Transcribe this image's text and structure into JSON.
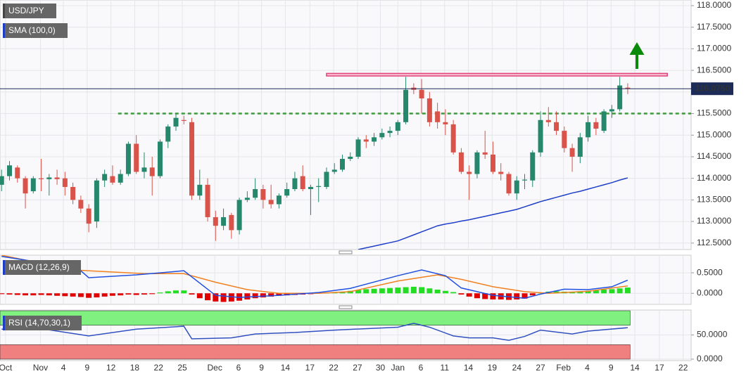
{
  "chart_data": [
    {
      "type": "candlestick",
      "title": "USD/JPY",
      "xlim": [
        -0.2,
        87
      ],
      "ylim": [
        112.35,
        118.13
      ],
      "xticks": [
        {
          "value": 0.5,
          "label": "Oct"
        },
        {
          "value": 4.9,
          "label": "Nov"
        },
        {
          "value": 7.8,
          "label": "4"
        },
        {
          "value": 10.8,
          "label": "9"
        },
        {
          "value": 13.8,
          "label": "12"
        },
        {
          "value": 16.8,
          "label": "18"
        },
        {
          "value": 19.8,
          "label": "22"
        },
        {
          "value": 22.8,
          "label": "25"
        },
        {
          "value": 26.9,
          "label": "Dec"
        },
        {
          "value": 29.9,
          "label": "6"
        },
        {
          "value": 32.8,
          "label": "9"
        },
        {
          "value": 35.8,
          "label": "14"
        },
        {
          "value": 38.9,
          "label": "17"
        },
        {
          "value": 41.9,
          "label": "22"
        },
        {
          "value": 44.9,
          "label": "27"
        },
        {
          "value": 47.8,
          "label": "30"
        },
        {
          "value": 50.0,
          "label": "Jan"
        },
        {
          "value": 52.9,
          "label": "6"
        },
        {
          "value": 55.9,
          "label": "11"
        },
        {
          "value": 58.9,
          "label": "14"
        },
        {
          "value": 61.9,
          "label": "19"
        },
        {
          "value": 65.0,
          "label": "24"
        },
        {
          "value": 68.0,
          "label": "27"
        },
        {
          "value": 70.9,
          "label": "Feb"
        },
        {
          "value": 73.9,
          "label": "4"
        },
        {
          "value": 76.9,
          "label": "9"
        },
        {
          "value": 79.9,
          "label": "14"
        },
        {
          "value": 83.0,
          "label": "17"
        },
        {
          "value": 86.0,
          "label": "22"
        }
      ],
      "yticks": [
        {
          "value": 112.5,
          "label": "112.5000"
        },
        {
          "value": 113,
          "label": "113.0000"
        },
        {
          "value": 113.5,
          "label": "113.5000"
        },
        {
          "value": 114,
          "label": "114.0000"
        },
        {
          "value": 114.5,
          "label": "114.5000"
        },
        {
          "value": 115,
          "label": "115.0000"
        },
        {
          "value": 115.5,
          "label": "115.5000"
        },
        {
          "value": 116,
          "label": "116.0000"
        },
        {
          "value": 116.5,
          "label": "116.5000"
        },
        {
          "value": 117,
          "label": "117.0000"
        },
        {
          "value": 117.5,
          "label": "117.5000"
        },
        {
          "value": 118,
          "label": "118.0000"
        }
      ],
      "grid": true,
      "up_color": "#25876b",
      "down_color": "#d9534a",
      "candles": {
        "open": [
          113.85,
          114.05,
          114.25,
          114.0,
          113.7,
          114.0,
          113.98,
          114.02,
          114.0,
          113.8,
          113.5,
          113.3,
          113.0,
          113.95,
          114.05,
          113.9,
          114.1,
          114.8,
          114.15,
          114.25,
          114.05,
          114.85,
          115.2,
          115.35,
          115.3,
          113.6,
          113.85,
          113.1,
          112.9,
          113.15,
          112.8,
          113.5,
          113.55,
          113.75,
          113.5,
          113.4,
          113.6,
          113.75,
          114.05,
          113.75,
          113.8,
          113.8,
          114.15,
          114.2,
          114.45,
          114.5,
          114.9,
          114.85,
          114.95,
          115.05,
          115.1,
          115.3,
          116.1,
          116.05,
          115.85,
          115.55,
          115.3,
          115.25,
          114.6,
          114.15,
          114.1,
          114.6,
          114.55,
          114.15,
          114.1,
          113.65,
          113.95,
          113.95,
          114.6,
          115.35,
          115.3,
          115.1,
          114.7,
          114.5,
          114.95,
          115.3,
          115.1,
          115.55,
          115.6,
          116.1
        ],
        "high": [
          114.2,
          114.4,
          114.3,
          114.05,
          114.05,
          114.45,
          114.1,
          114.2,
          114.15,
          113.9,
          113.6,
          113.4,
          114.0,
          114.2,
          114.3,
          114.2,
          114.85,
          115.0,
          114.6,
          114.5,
          114.9,
          115.25,
          115.5,
          115.45,
          115.4,
          114.2,
          114.0,
          113.25,
          113.3,
          113.2,
          113.55,
          113.7,
          114.0,
          113.85,
          113.85,
          113.65,
          113.9,
          114.15,
          114.3,
          113.85,
          114.0,
          114.25,
          114.35,
          114.55,
          114.6,
          114.95,
          115.0,
          115.05,
          115.15,
          115.2,
          115.35,
          116.35,
          116.2,
          116.3,
          116.0,
          115.75,
          115.6,
          115.35,
          114.7,
          114.3,
          114.65,
          115.1,
          114.85,
          114.35,
          114.15,
          114.05,
          114.1,
          114.65,
          115.55,
          115.65,
          115.55,
          115.2,
          114.8,
          115.05,
          115.45,
          115.4,
          115.6,
          115.7,
          116.35,
          116.2
        ],
        "low": [
          113.7,
          113.95,
          113.9,
          113.3,
          113.65,
          113.7,
          113.6,
          113.85,
          113.6,
          113.4,
          113.2,
          112.75,
          112.85,
          113.8,
          113.85,
          113.85,
          114.05,
          114.1,
          114.0,
          113.6,
          114.0,
          114.7,
          115.1,
          115.25,
          113.5,
          113.5,
          113.0,
          112.55,
          112.8,
          112.6,
          112.7,
          113.45,
          113.5,
          113.3,
          113.3,
          113.3,
          113.55,
          113.7,
          113.7,
          113.15,
          113.45,
          113.75,
          114.1,
          114.15,
          114.4,
          114.45,
          114.7,
          114.75,
          114.9,
          114.95,
          115.0,
          115.25,
          115.95,
          115.5,
          115.2,
          115.15,
          115.0,
          114.55,
          114.1,
          113.5,
          114.0,
          114.45,
          114.1,
          113.95,
          113.6,
          113.5,
          113.75,
          113.8,
          114.5,
          115.2,
          115.0,
          114.6,
          114.15,
          114.35,
          114.85,
          115.0,
          115.05,
          115.4,
          115.55,
          115.95
        ],
        "close": [
          114.05,
          114.3,
          114.0,
          113.65,
          114.0,
          113.98,
          114.02,
          113.98,
          113.8,
          113.5,
          113.3,
          112.95,
          113.95,
          114.1,
          113.9,
          114.1,
          114.8,
          114.15,
          114.25,
          114.05,
          114.85,
          115.2,
          115.4,
          115.33,
          113.6,
          113.85,
          113.1,
          112.9,
          113.1,
          112.8,
          113.5,
          113.55,
          113.75,
          113.5,
          113.4,
          113.6,
          113.75,
          114.0,
          113.75,
          113.8,
          113.82,
          114.15,
          114.2,
          114.45,
          114.5,
          114.9,
          114.85,
          114.95,
          115.05,
          115.1,
          115.3,
          116.05,
          116.05,
          115.85,
          115.3,
          115.3,
          115.25,
          114.6,
          114.15,
          114.1,
          114.6,
          114.55,
          114.15,
          114.1,
          113.65,
          113.95,
          113.97,
          114.6,
          115.35,
          115.3,
          115.1,
          114.7,
          114.5,
          114.95,
          115.3,
          115.15,
          115.55,
          115.6,
          116.15,
          116.075
        ]
      },
      "series": [
        {
          "name": "SMA (100,0)",
          "color": "#1e3ec8",
          "values": [
            null,
            null,
            null,
            null,
            null,
            null,
            null,
            null,
            null,
            null,
            null,
            null,
            null,
            null,
            null,
            null,
            null,
            null,
            null,
            null,
            null,
            null,
            null,
            null,
            null,
            null,
            null,
            null,
            null,
            null,
            null,
            null,
            null,
            null,
            null,
            null,
            null,
            null,
            null,
            null,
            null,
            null,
            null,
            null,
            null,
            112.35,
            112.39,
            112.43,
            112.47,
            112.51,
            112.55,
            112.62,
            112.69,
            112.76,
            112.83,
            112.9,
            112.94,
            112.97,
            113.01,
            113.04,
            113.08,
            113.12,
            113.16,
            113.2,
            113.24,
            113.28,
            113.34,
            113.4,
            113.46,
            113.51,
            113.56,
            113.61,
            113.66,
            113.7,
            113.75,
            113.8,
            113.85,
            113.9,
            113.96,
            114.01
          ]
        }
      ],
      "current_price": {
        "value": 116.075,
        "label": "116.0750",
        "color": "#1c2b57"
      },
      "resistance_zone": {
        "values": [
          116.37,
          116.43
        ],
        "x_range": [
          41,
          84
        ],
        "color": "#e0457a"
      },
      "support_level": {
        "value": 115.5,
        "x_range": [
          14.7,
          87
        ],
        "color": "#3c9c3c"
      }
    },
    {
      "type": "macd",
      "title": "MACD (12,26,9)",
      "ylim": [
        -0.27,
        0.93
      ],
      "yticks": [
        {
          "value": 0.5,
          "label": "0.5000"
        },
        {
          "value": 0,
          "label": "0.0000"
        }
      ],
      "positive_color": "#22dd22",
      "negative_color": "#e00000",
      "histogram": [
        -0.02,
        -0.03,
        -0.04,
        -0.05,
        -0.05,
        -0.04,
        -0.05,
        -0.06,
        -0.07,
        -0.08,
        -0.09,
        -0.11,
        -0.1,
        -0.08,
        -0.06,
        -0.05,
        -0.03,
        -0.04,
        -0.03,
        -0.02,
        0.02,
        0.05,
        0.07,
        0.07,
        -0.03,
        -0.12,
        -0.17,
        -0.2,
        -0.21,
        -0.2,
        -0.18,
        -0.15,
        -0.12,
        -0.1,
        -0.08,
        -0.06,
        -0.05,
        -0.04,
        -0.03,
        -0.02,
        0.01,
        0.02,
        0.03,
        0.04,
        0.06,
        0.08,
        0.1,
        0.11,
        0.12,
        0.13,
        0.14,
        0.15,
        0.16,
        0.15,
        0.12,
        0.09,
        0.06,
        0.03,
        -0.03,
        -0.08,
        -0.12,
        -0.14,
        -0.15,
        -0.15,
        -0.16,
        -0.15,
        -0.13,
        -0.05,
        0.02,
        0.04,
        0.05,
        0.04,
        0.04,
        0.05,
        0.06,
        0.07,
        0.09,
        0.1,
        0.12,
        0.14
      ],
      "macd_line": {
        "color": "#2050e0",
        "x": [
          0,
          5,
          10,
          11,
          17,
          23,
          27,
          30,
          35,
          40,
          44,
          50,
          53,
          56,
          58,
          62,
          66,
          68,
          71,
          74,
          77,
          79
        ],
        "values": [
          0.9,
          0.75,
          0.55,
          0.38,
          0.45,
          0.55,
          -0.05,
          -0.1,
          -0.05,
          0.02,
          0.12,
          0.43,
          0.57,
          0.43,
          0.13,
          -0.05,
          -0.12,
          -0.02,
          0.1,
          0.09,
          0.16,
          0.32
        ]
      },
      "signal_line": {
        "color": "#f08020",
        "x": [
          0,
          9,
          18,
          23,
          27,
          31,
          35,
          40,
          44,
          50,
          55,
          58,
          62,
          66,
          69,
          74,
          79
        ],
        "values": [
          0.93,
          0.57,
          0.48,
          0.48,
          0.27,
          0.09,
          0,
          0,
          0.04,
          0.3,
          0.45,
          0.34,
          0.16,
          0.04,
          0,
          0.05,
          0.18
        ]
      }
    },
    {
      "type": "rsi",
      "title": "RSI (14,70,30,1)",
      "ylim": [
        -3,
        101.5
      ],
      "yticks": [
        {
          "value": 50,
          "label": "50.0000"
        },
        {
          "value": 0,
          "label": "0.0000"
        }
      ],
      "overbought_zone": {
        "values": [
          70,
          100
        ],
        "x_range": [
          -0.2,
          79.3
        ],
        "color": "#80f080"
      },
      "oversold_zone": {
        "values": [
          0,
          30
        ],
        "x_range": [
          -0.2,
          79.3
        ],
        "color": "#f08080"
      },
      "rsi_line": {
        "color": "#3050c0",
        "x": [
          0,
          5,
          11,
          17,
          23,
          24,
          29,
          32,
          37,
          42,
          50,
          52,
          54,
          57,
          59,
          62,
          64,
          66,
          68,
          72,
          74,
          79
        ],
        "values": [
          62,
          63,
          48,
          62,
          68,
          42,
          44,
          52,
          55,
          60,
          66,
          74,
          66,
          48,
          44,
          44,
          39,
          47,
          60,
          52,
          58,
          65
        ]
      }
    }
  ]
}
